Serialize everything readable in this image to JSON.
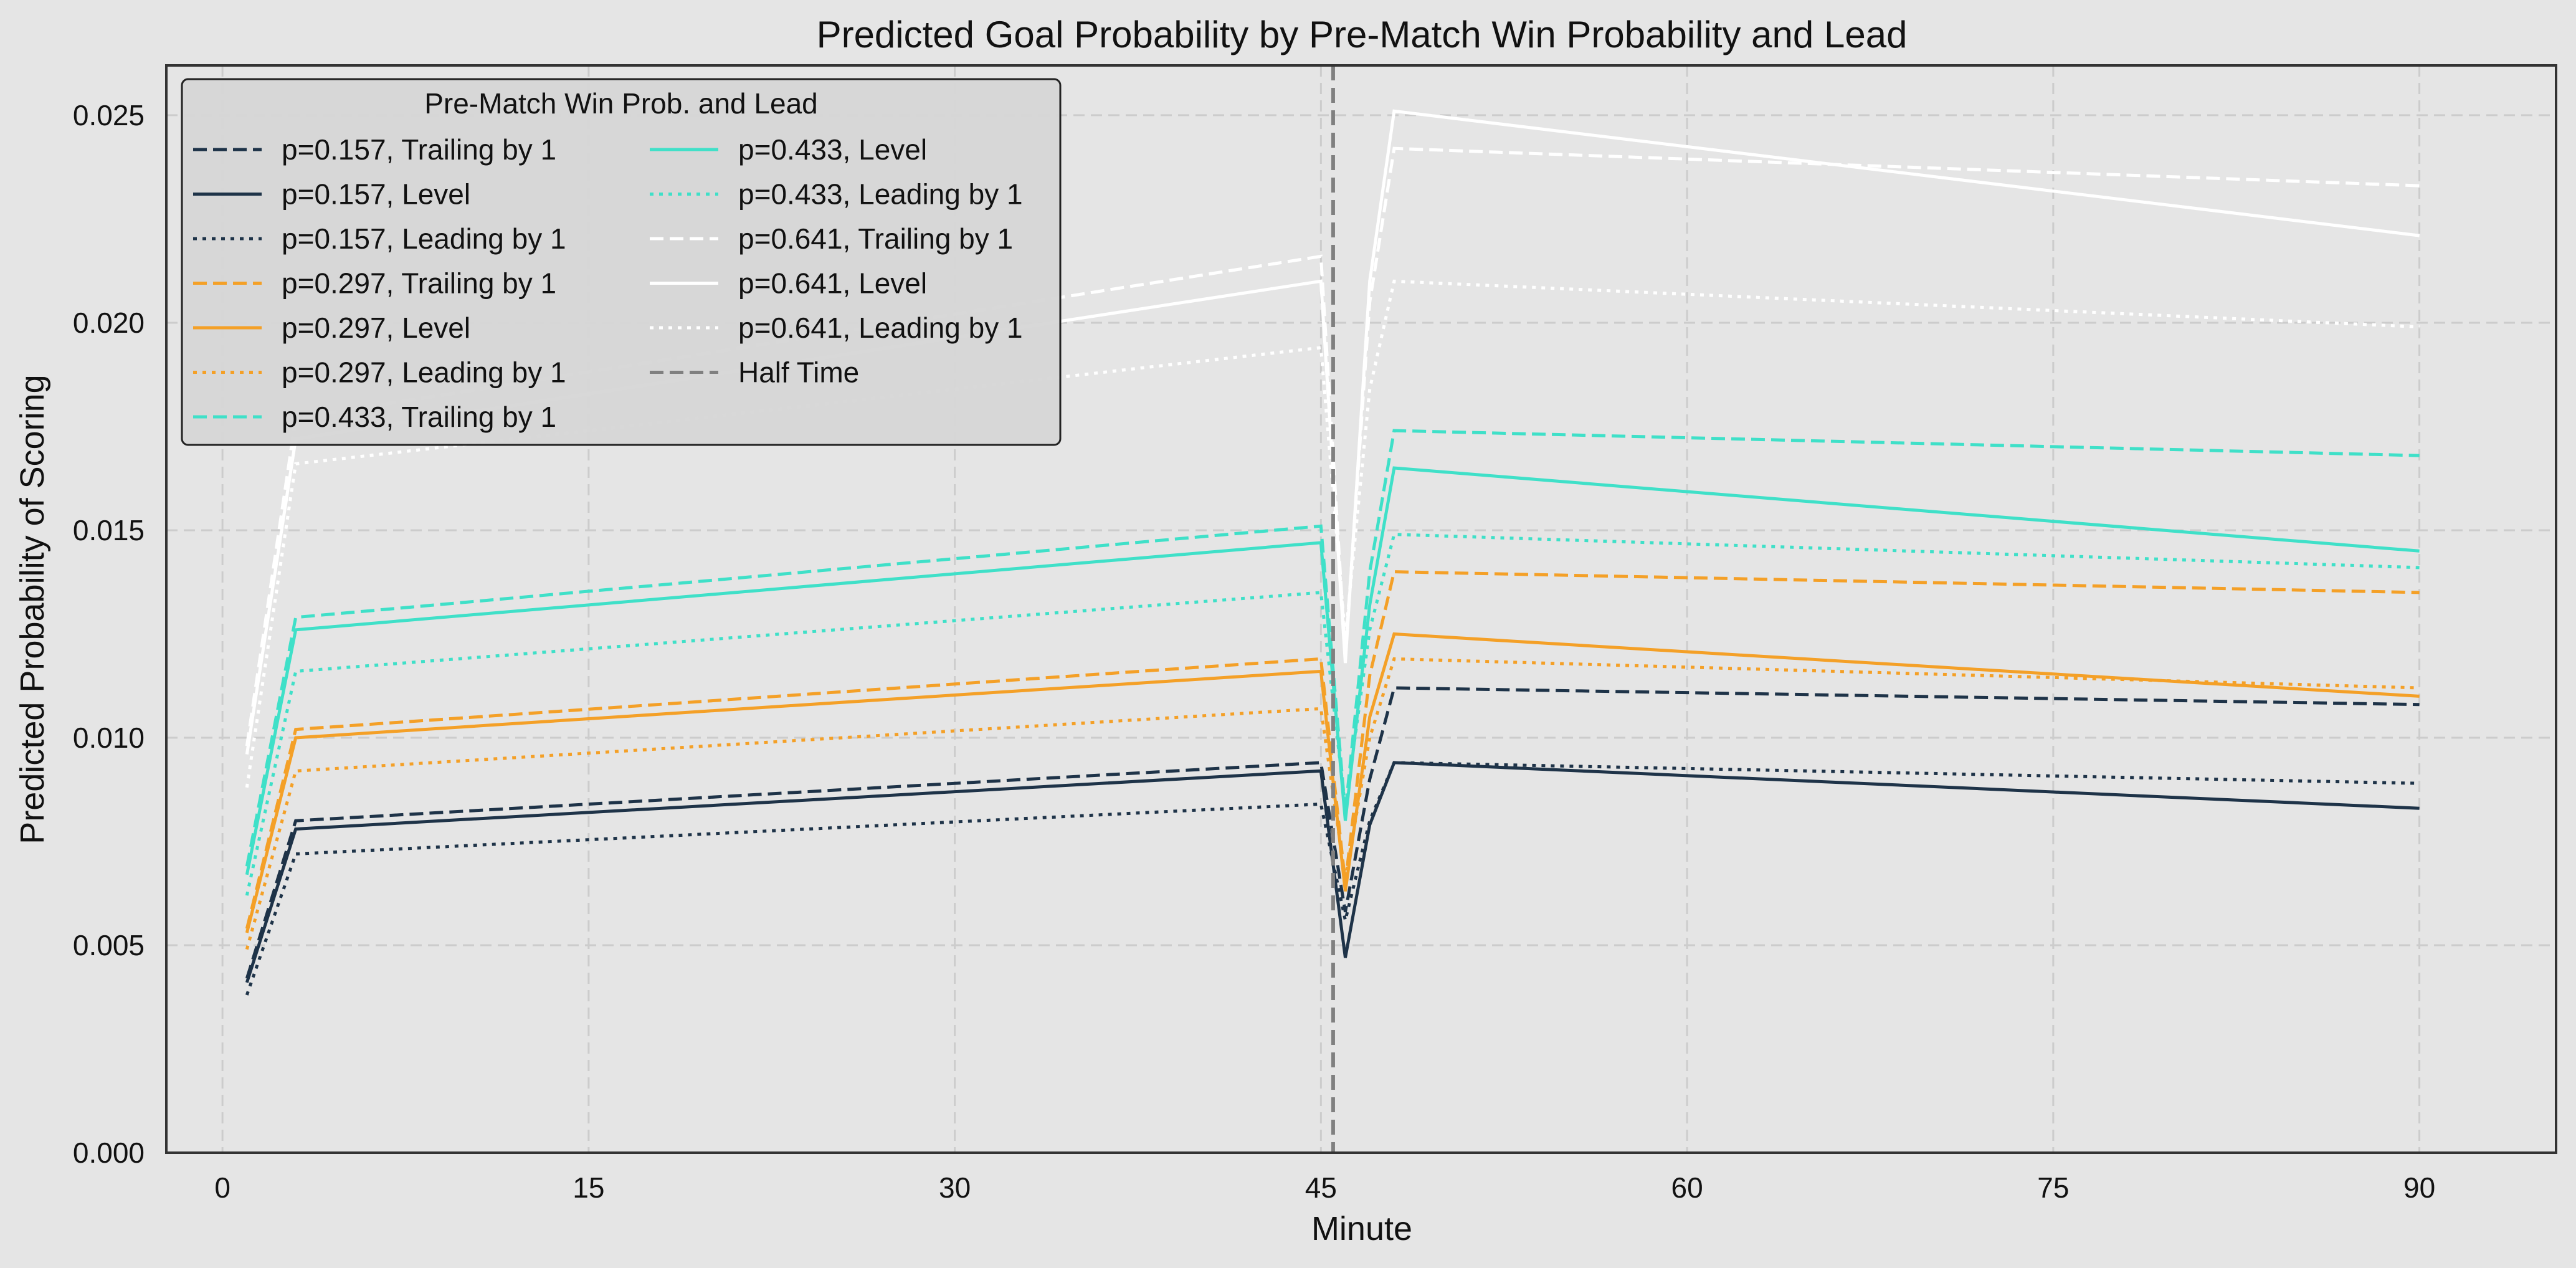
{
  "chart_data": {
    "type": "line",
    "title": "Predicted Goal Probability by Pre-Match Win Probability and Lead",
    "xlabel": "Minute",
    "ylabel": "Predicted Probability of Scoring",
    "xlim": [
      -2.3,
      95.6
    ],
    "ylim": [
      0.0,
      0.0262
    ],
    "xticks": [
      0,
      15,
      30,
      45,
      60,
      75,
      90
    ],
    "yticks": [
      0.0,
      0.005,
      0.01,
      0.015,
      0.02,
      0.025
    ],
    "ytick_labels": [
      "0.000",
      "0.005",
      "0.010",
      "0.015",
      "0.020",
      "0.025"
    ],
    "grid": true,
    "legend": {
      "title": "Pre-Match Win Prob. and Lead",
      "placement": "top-left",
      "columns": 2
    },
    "x": [
      1,
      3,
      45,
      46,
      47,
      48,
      90
    ],
    "series": [
      {
        "name": "p=0.157, Trailing by 1",
        "color": "#1e3348",
        "dash": "dashed",
        "values": [
          0.0042,
          0.008,
          0.0094,
          0.0058,
          0.009,
          0.0112,
          0.0108
        ]
      },
      {
        "name": "p=0.157, Level",
        "color": "#1e3348",
        "dash": "solid",
        "values": [
          0.0041,
          0.0078,
          0.0092,
          0.0047,
          0.0079,
          0.0094,
          0.0083
        ]
      },
      {
        "name": "p=0.157, Leading by 1",
        "color": "#1e3348",
        "dash": "dotted",
        "values": [
          0.0038,
          0.0072,
          0.0084,
          0.0056,
          0.008,
          0.0094,
          0.0089
        ]
      },
      {
        "name": "p=0.297, Trailing by 1",
        "color": "#f4a027",
        "dash": "dashed",
        "values": [
          0.0054,
          0.0102,
          0.0119,
          0.0065,
          0.0115,
          0.014,
          0.0135
        ]
      },
      {
        "name": "p=0.297, Level",
        "color": "#f4a027",
        "dash": "solid",
        "values": [
          0.0053,
          0.01,
          0.0116,
          0.0063,
          0.0105,
          0.0125,
          0.011
        ]
      },
      {
        "name": "p=0.297, Leading by 1",
        "color": "#f4a027",
        "dash": "dotted",
        "values": [
          0.0049,
          0.0092,
          0.0107,
          0.0066,
          0.01,
          0.0119,
          0.0112
        ]
      },
      {
        "name": "p=0.433, Trailing by 1",
        "color": "#3fe0c8",
        "dash": "dashed",
        "values": [
          0.0069,
          0.0129,
          0.0151,
          0.0082,
          0.014,
          0.0174,
          0.0168
        ]
      },
      {
        "name": "p=0.433, Level",
        "color": "#3fe0c8",
        "dash": "solid",
        "values": [
          0.0067,
          0.0126,
          0.0147,
          0.008,
          0.0132,
          0.0165,
          0.0145
        ]
      },
      {
        "name": "p=0.433, Leading by 1",
        "color": "#3fe0c8",
        "dash": "dotted",
        "values": [
          0.0062,
          0.0116,
          0.0135,
          0.0083,
          0.0126,
          0.0149,
          0.0141
        ]
      },
      {
        "name": "p=0.641, Trailing by 1",
        "color": "#ffffff",
        "dash": "dashed",
        "values": [
          0.0098,
          0.0177,
          0.0216,
          0.012,
          0.0205,
          0.0242,
          0.0233
        ]
      },
      {
        "name": "p=0.641, Level",
        "color": "#ffffff",
        "dash": "solid",
        "values": [
          0.0096,
          0.0172,
          0.021,
          0.0118,
          0.021,
          0.0251,
          0.0221
        ]
      },
      {
        "name": "p=0.641, Leading by 1",
        "color": "#ffffff",
        "dash": "dotted",
        "values": [
          0.0088,
          0.0166,
          0.0194,
          0.0124,
          0.0184,
          0.021,
          0.0199
        ]
      }
    ],
    "reference_line": {
      "name": "Half Time",
      "x": 45.5,
      "color": "#808080",
      "dash": "dashed"
    }
  }
}
